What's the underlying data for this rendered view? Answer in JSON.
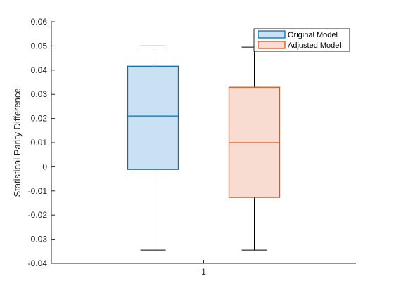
{
  "chart_data": {
    "type": "box",
    "title": "",
    "xlabel": "",
    "ylabel": "Statistical Parity Difference",
    "x_ticks": [
      "1"
    ],
    "y_ticks": [
      "-0.04",
      "-0.03",
      "-0.02",
      "-0.01",
      "0",
      "0.01",
      "0.02",
      "0.03",
      "0.04",
      "0.05",
      "0.06"
    ],
    "ylim": [
      -0.04,
      0.06
    ],
    "grid": false,
    "legend_position": "top-right",
    "series": [
      {
        "name": "Original Model",
        "color": "#0072BD",
        "fill": "#C9E1F2",
        "min": -0.0345,
        "q1": -0.0011,
        "median": 0.021,
        "q3": 0.0416,
        "max": 0.05
      },
      {
        "name": "Adjusted Model",
        "color": "#D95319",
        "fill": "#F8DCD1",
        "min": -0.0345,
        "q1": -0.0127,
        "median": 0.01,
        "q3": 0.0329,
        "max": 0.0495
      }
    ]
  }
}
